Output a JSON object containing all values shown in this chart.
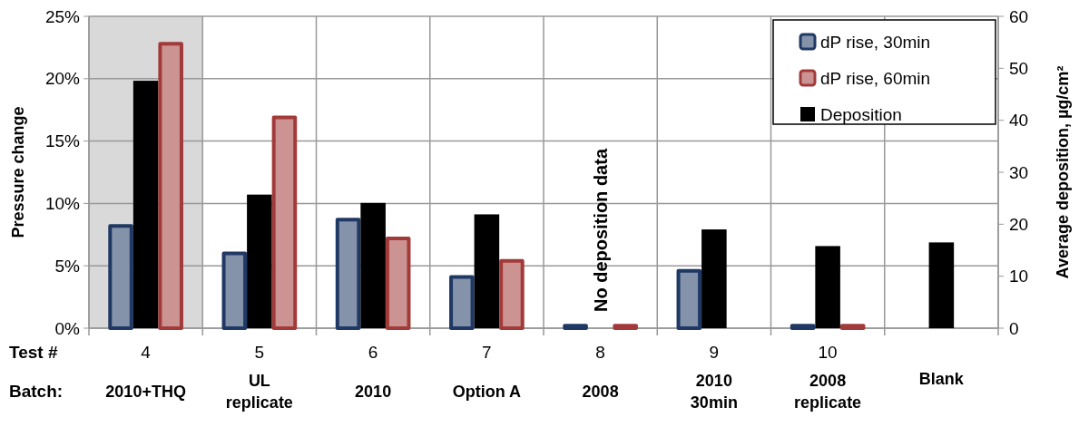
{
  "chart_data": {
    "type": "bar",
    "categories": [
      "4\n2010+THQ",
      "5\nUL\nreplicate",
      "6\n2010",
      "7\nOption A",
      "8\n2008",
      "9\n2010\n30min",
      "10\n2008\nreplicate",
      "\nBlank"
    ],
    "series": [
      {
        "name": "dP rise, 30min",
        "color": "#1f3864",
        "values": [
          8.2,
          6.0,
          8.7,
          4.1,
          0.2,
          4.6,
          0.2,
          null
        ]
      },
      {
        "name": "dP rise, 60min",
        "color": "#a33a3a",
        "values": [
          22.8,
          16.9,
          7.2,
          5.4,
          0.2,
          null,
          0.2,
          null
        ]
      },
      {
        "name": "Deposition",
        "color": "#000000",
        "axis": "y2",
        "values": [
          47.6,
          25.7,
          24.1,
          21.9,
          null,
          19,
          15.8,
          16.5
        ]
      }
    ],
    "ylabel": "Pressure change",
    "y2label": "Average deposition, µg/cm²",
    "ylim": [
      0,
      25
    ],
    "yticks": [
      {
        "value": 0,
        "label": "0%"
      },
      {
        "value": 5,
        "label": "5%"
      },
      {
        "value": 10,
        "label": "10%"
      },
      {
        "value": 15,
        "label": "15%"
      },
      {
        "value": 20,
        "label": "20%"
      },
      {
        "value": 25,
        "label": "25%"
      }
    ],
    "y2lim": [
      0,
      60
    ],
    "y2ticks": [
      0,
      10,
      20,
      30,
      40,
      50,
      60
    ],
    "bands": [
      {
        "axis": "x",
        "from": "4\n2010+THQ",
        "to": "4\n2010+THQ",
        "color": "#d9d9d9"
      }
    ],
    "annotations": [
      "Test #",
      "Batch:",
      "No deposition data"
    ],
    "grid": true,
    "legend": "top right"
  }
}
